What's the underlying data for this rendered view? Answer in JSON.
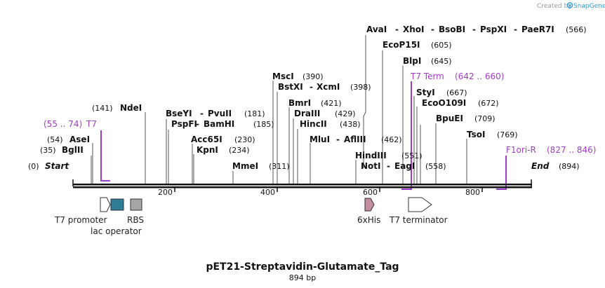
{
  "credit": {
    "text": "Created by",
    "brand": "SnapGene",
    "brand_color": "#2a9bd6"
  },
  "title": "pET21-Streptavidin-Glutamate_Tag",
  "subtitle": "894 bp",
  "ends": {
    "start": {
      "label": "Start",
      "pos": "(0)"
    },
    "end": {
      "label": "End",
      "pos": "(894)"
    }
  },
  "primer_color": "#a03cc8",
  "ticks": [
    "200",
    "400",
    "600",
    "800"
  ],
  "sites": {
    "bglii": {
      "name": "BglII",
      "pos": "(35)"
    },
    "asei": {
      "name": "AseI",
      "pos": "(54)"
    },
    "ndei": {
      "name": "NdeI",
      "pos": "(141)"
    },
    "bseyi": {
      "name": "BseYI",
      "pos": ""
    },
    "pvuii": {
      "name": "PvuII",
      "pos": "(181)"
    },
    "pspfi": {
      "name": "PspFI",
      "pos": ""
    },
    "bamhi": {
      "name": "BamHI",
      "pos": "(185)"
    },
    "acc65i": {
      "name": "Acc65I",
      "pos": "(230)"
    },
    "kpni": {
      "name": "KpnI",
      "pos": "(234)"
    },
    "mmei": {
      "name": "MmeI",
      "pos": "(311)"
    },
    "msci": {
      "name": "MscI",
      "pos": "(390)"
    },
    "bstxi": {
      "name": "BstXI",
      "pos": ""
    },
    "xcmi": {
      "name": "XcmI",
      "pos": "(398)"
    },
    "bmri": {
      "name": "BmrI",
      "pos": "(421)"
    },
    "draiii": {
      "name": "DraIII",
      "pos": "(429)"
    },
    "hincii": {
      "name": "HincII",
      "pos": "(438)"
    },
    "mlui": {
      "name": "MluI",
      "pos": ""
    },
    "aflIII": {
      "name": "AflIII",
      "pos": "(462)"
    },
    "hindiii": {
      "name": "HindIII",
      "pos": "(551)"
    },
    "noti": {
      "name": "NotI",
      "pos": ""
    },
    "eagi": {
      "name": "EagI",
      "pos": "(558)"
    },
    "avai": {
      "name": "AvaI",
      "pos": ""
    },
    "xhoi": {
      "name": "XhoI",
      "pos": ""
    },
    "bsobi": {
      "name": "BsoBI",
      "pos": ""
    },
    "pspxi": {
      "name": "PspXI",
      "pos": ""
    },
    "paer7i": {
      "name": "PaeR7I",
      "pos": "(566)"
    },
    "ecop15i": {
      "name": "EcoP15I",
      "pos": "(605)"
    },
    "blpi": {
      "name": "BlpI",
      "pos": "(645)"
    },
    "styi": {
      "name": "StyI",
      "pos": "(667)"
    },
    "ecoo109i": {
      "name": "EcoO109I",
      "pos": "(672)"
    },
    "bpuei": {
      "name": "BpuEI",
      "pos": "(709)"
    },
    "tsoi": {
      "name": "TsoI",
      "pos": "(769)"
    }
  },
  "primers": {
    "t7": {
      "name": "T7",
      "range": "(55 .. 74)"
    },
    "t7term": {
      "name": "T7 Term",
      "range": "(642 .. 660)"
    },
    "f1ori": {
      "name": "F1ori-R",
      "range": "(827 .. 846)"
    }
  },
  "features": {
    "t7promoter": {
      "label": "T7 promoter",
      "color": "#ffffff"
    },
    "lacoperator": {
      "label": "lac operator",
      "color": "#2e7d94"
    },
    "rbs": {
      "label": "RBS",
      "color": "#a6a6a6"
    },
    "his": {
      "label": "6xHis",
      "color": "#c48ea0"
    },
    "t7terminator": {
      "label": "T7 terminator",
      "color": "#ffffff"
    }
  },
  "separators": {
    "dash": "-"
  }
}
